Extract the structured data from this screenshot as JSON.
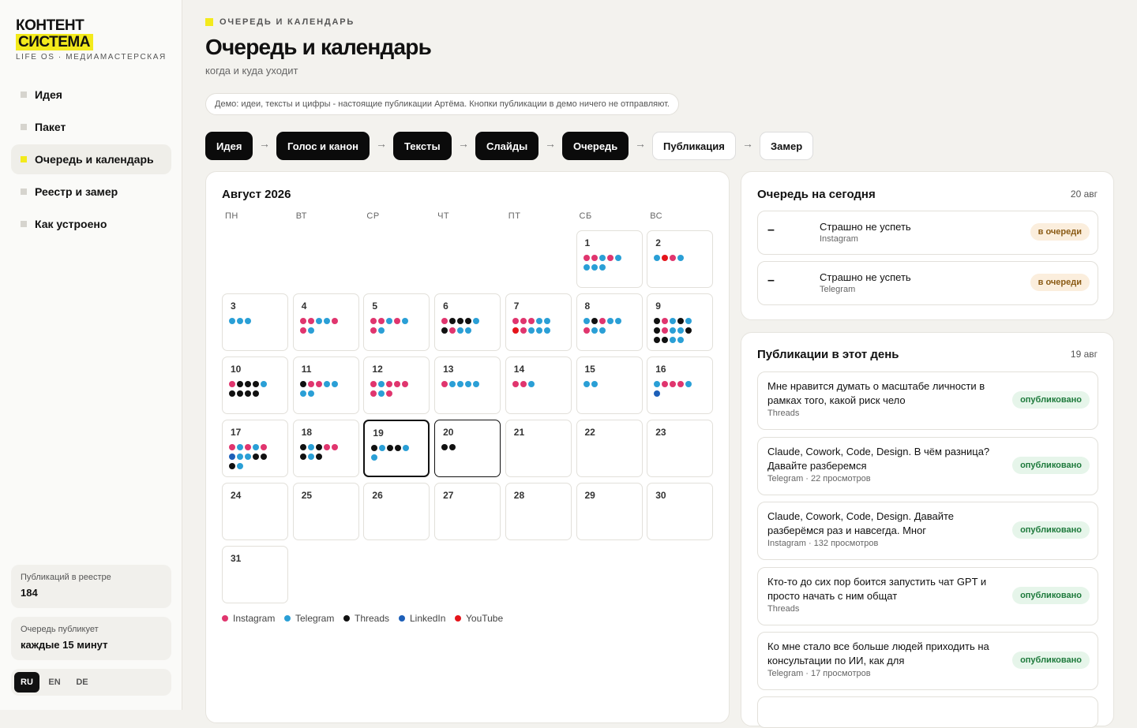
{
  "brand": {
    "line1": "КОНТЕНТ",
    "line2": "СИСТЕМА",
    "tagline": "LIFE OS · МЕДИАМАСТЕРСКАЯ"
  },
  "nav": [
    {
      "label": "Идея",
      "active": false
    },
    {
      "label": "Пакет",
      "active": false
    },
    {
      "label": "Очередь и календарь",
      "active": true
    },
    {
      "label": "Реестр и замер",
      "active": false
    },
    {
      "label": "Как устроено",
      "active": false
    }
  ],
  "stats": [
    {
      "label": "Публикаций в реестре",
      "value": "184"
    },
    {
      "label": "Очередь публикует",
      "value": "каждые 15 минут"
    }
  ],
  "languages": [
    {
      "label": "RU",
      "active": true
    },
    {
      "label": "EN",
      "active": false
    },
    {
      "label": "DE",
      "active": false
    }
  ],
  "header": {
    "eyebrow": "ОЧЕРЕДЬ И КАЛЕНДАРЬ",
    "title": "Очередь и календарь",
    "subtitle": "когда и куда уходит"
  },
  "demo_note": "Демо: идеи, тексты и цифры - настоящие публикации Артёма. Кнопки публикации в демо ничего не отправляют.",
  "pipeline": {
    "arrow": "→",
    "steps": [
      {
        "label": "Идея",
        "done": true
      },
      {
        "label": "Голос и канон",
        "done": true
      },
      {
        "label": "Тексты",
        "done": true
      },
      {
        "label": "Слайды",
        "done": true
      },
      {
        "label": "Очередь",
        "done": true
      },
      {
        "label": "Публикация",
        "done": false
      },
      {
        "label": "Замер",
        "done": false
      }
    ]
  },
  "calendar": {
    "title": "Август 2026",
    "weekdays": [
      "ПН",
      "ВТ",
      "СР",
      "ЧТ",
      "ПТ",
      "СБ",
      "ВС"
    ],
    "days": [
      null,
      null,
      null,
      null,
      null,
      {
        "label": "1",
        "dots": [
          0,
          0,
          1,
          0,
          1,
          1,
          1,
          1
        ]
      },
      {
        "label": "2",
        "dots": [
          1,
          4,
          0,
          1
        ]
      },
      {
        "label": "3",
        "dots": [
          1,
          1,
          1
        ]
      },
      {
        "label": "4",
        "dots": [
          0,
          0,
          1,
          1,
          0,
          0,
          1
        ]
      },
      {
        "label": "5",
        "dots": [
          0,
          0,
          1,
          0,
          1,
          0,
          1
        ]
      },
      {
        "label": "6",
        "dots": [
          0,
          2,
          2,
          2,
          1,
          2,
          0,
          1,
          1
        ]
      },
      {
        "label": "7",
        "dots": [
          0,
          0,
          0,
          1,
          1,
          4,
          0,
          1,
          1,
          1
        ]
      },
      {
        "label": "8",
        "dots": [
          1,
          2,
          0,
          1,
          1,
          0,
          1,
          1
        ]
      },
      {
        "label": "9",
        "dots": [
          2,
          0,
          1,
          2,
          1,
          2,
          0,
          1,
          1,
          2,
          2,
          2,
          1,
          1
        ]
      },
      {
        "label": "10",
        "dots": [
          0,
          2,
          2,
          2,
          1,
          2,
          2,
          2,
          2
        ]
      },
      {
        "label": "11",
        "dots": [
          2,
          0,
          0,
          1,
          1,
          1,
          1
        ]
      },
      {
        "label": "12",
        "dots": [
          0,
          1,
          0,
          0,
          0,
          0,
          1,
          0
        ]
      },
      {
        "label": "13",
        "dots": [
          0,
          1,
          1,
          1,
          1
        ]
      },
      {
        "label": "14",
        "dots": [
          0,
          0,
          1
        ]
      },
      {
        "label": "15",
        "dots": [
          1,
          1
        ]
      },
      {
        "label": "16",
        "dots": [
          1,
          0,
          0,
          0,
          1,
          3
        ]
      },
      {
        "label": "17",
        "dots": [
          0,
          1,
          0,
          1,
          0,
          3,
          1,
          1,
          2,
          2,
          2,
          1
        ]
      },
      {
        "label": "18",
        "dots": [
          2,
          1,
          2,
          0,
          0,
          2,
          1,
          2
        ]
      },
      {
        "label": "19",
        "dots": [
          2,
          1,
          2,
          2,
          1,
          1
        ],
        "selected": true
      },
      {
        "label": "20",
        "dots": [
          2,
          2
        ],
        "today": true
      },
      {
        "label": "21",
        "dots": []
      },
      {
        "label": "22",
        "dots": []
      },
      {
        "label": "23",
        "dots": []
      },
      {
        "label": "24",
        "dots": []
      },
      {
        "label": "25",
        "dots": []
      },
      {
        "label": "26",
        "dots": []
      },
      {
        "label": "27",
        "dots": []
      },
      {
        "label": "28",
        "dots": []
      },
      {
        "label": "29",
        "dots": []
      },
      {
        "label": "30",
        "dots": []
      },
      {
        "label": "31",
        "dots": []
      }
    ],
    "legend": [
      {
        "name": "Instagram",
        "color": "#e0356e"
      },
      {
        "name": "Telegram",
        "color": "#2a9fd6"
      },
      {
        "name": "Threads",
        "color": "#111111"
      },
      {
        "name": "LinkedIn",
        "color": "#1d5fb8"
      },
      {
        "name": "YouTube",
        "color": "#e5141b"
      }
    ]
  },
  "queue": {
    "title": "Очередь на сегодня",
    "date": "20 авг",
    "items": [
      {
        "mark": "–",
        "title": "Страшно не успеть",
        "platform": "Instagram",
        "status": "в очереди"
      },
      {
        "mark": "–",
        "title": "Страшно не успеть",
        "platform": "Telegram",
        "status": "в очереди"
      }
    ]
  },
  "published": {
    "title": "Публикации в этот день",
    "date": "19 авг",
    "items": [
      {
        "title": "Мне нравится думать о масштабе личности в рамках того, какой риск чело",
        "meta": "Threads",
        "status": "опубликовано"
      },
      {
        "title": "Claude, Cowork, Code, Design. В чём разница? Давайте разберемся",
        "meta": "Telegram · 22 просмотров",
        "status": "опубликовано"
      },
      {
        "title": "Claude, Cowork, Code, Design. Давайте разберёмся раз и навсегда. Мног",
        "meta": "Instagram · 132 просмотров",
        "status": "опубликовано"
      },
      {
        "title": "Кто-то до сих пор боится запустить чат GPT и просто начать с ним общат",
        "meta": "Threads",
        "status": "опубликовано"
      },
      {
        "title": "Ко мне стало все больше людей приходить на консультации по ИИ, как для",
        "meta": "Telegram · 17 просмотров",
        "status": "опубликовано"
      }
    ]
  }
}
